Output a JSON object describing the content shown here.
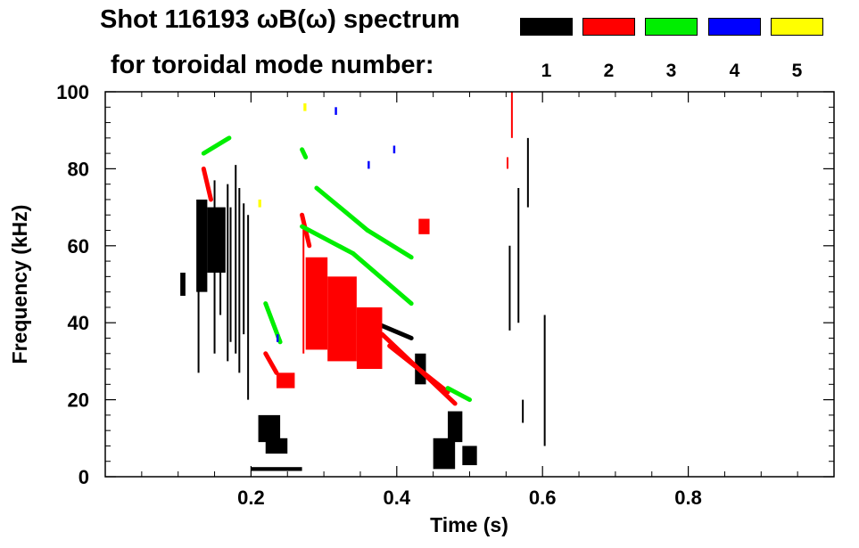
{
  "chart_data": {
    "type": "heatmap",
    "title_line1": "Shot 116193 ωB(ω) spectrum",
    "title_line2": "for toroidal mode number:",
    "xlabel": "Time (s)",
    "ylabel": "Frequency (kHz)",
    "xlim": [
      0.0,
      1.0
    ],
    "ylim": [
      0,
      100
    ],
    "x_ticks": [
      0.2,
      0.4,
      0.6,
      0.8
    ],
    "x_tick_labels": [
      "0.2",
      "0.4",
      "0.6",
      "0.8"
    ],
    "y_ticks": [
      0,
      20,
      40,
      60,
      80,
      100
    ],
    "y_tick_labels": [
      "0",
      "20",
      "40",
      "60",
      "80",
      "100"
    ],
    "legend_position": "top-right",
    "modes": [
      {
        "n": "1",
        "color": "#000000"
      },
      {
        "n": "2",
        "color": "#ff0000"
      },
      {
        "n": "3",
        "color": "#00ee00"
      },
      {
        "n": "4",
        "color": "#0000ff"
      },
      {
        "n": "5",
        "color": "#ffff00"
      }
    ],
    "features": [
      {
        "mode": "1",
        "shape": "box",
        "t": [
          0.103,
          0.11
        ],
        "f": [
          47,
          53
        ]
      },
      {
        "mode": "1",
        "shape": "box",
        "t": [
          0.125,
          0.14
        ],
        "f": [
          48,
          72
        ]
      },
      {
        "mode": "1",
        "shape": "box",
        "t": [
          0.14,
          0.165
        ],
        "f": [
          53,
          70
        ]
      },
      {
        "mode": "1",
        "shape": "vline",
        "t": 0.128,
        "f": [
          27,
          57
        ]
      },
      {
        "mode": "1",
        "shape": "vline",
        "t": 0.15,
        "f": [
          32,
          77
        ]
      },
      {
        "mode": "1",
        "shape": "vline",
        "t": 0.158,
        "f": [
          42,
          68
        ]
      },
      {
        "mode": "1",
        "shape": "vline",
        "t": 0.168,
        "f": [
          30,
          76
        ]
      },
      {
        "mode": "1",
        "shape": "vline",
        "t": 0.172,
        "f": [
          35,
          70
        ]
      },
      {
        "mode": "1",
        "shape": "vline",
        "t": 0.179,
        "f": [
          32,
          81
        ]
      },
      {
        "mode": "1",
        "shape": "vline",
        "t": 0.184,
        "f": [
          27,
          75
        ]
      },
      {
        "mode": "1",
        "shape": "vline",
        "t": 0.19,
        "f": [
          37,
          71
        ]
      },
      {
        "mode": "1",
        "shape": "vline",
        "t": 0.196,
        "f": [
          20,
          68
        ]
      },
      {
        "mode": "1",
        "shape": "box",
        "t": [
          0.21,
          0.24
        ],
        "f": [
          9,
          16
        ]
      },
      {
        "mode": "1",
        "shape": "box",
        "t": [
          0.22,
          0.25
        ],
        "f": [
          6,
          10
        ]
      },
      {
        "mode": "1",
        "shape": "box",
        "t": [
          0.2,
          0.27
        ],
        "f": [
          1.5,
          2.5
        ]
      },
      {
        "mode": "1",
        "shape": "box",
        "t": [
          0.47,
          0.49
        ],
        "f": [
          9,
          17
        ]
      },
      {
        "mode": "1",
        "shape": "box",
        "t": [
          0.45,
          0.48
        ],
        "f": [
          2,
          10
        ]
      },
      {
        "mode": "1",
        "shape": "box",
        "t": [
          0.49,
          0.51
        ],
        "f": [
          3,
          8
        ]
      },
      {
        "mode": "1",
        "shape": "box",
        "t": [
          0.425,
          0.44
        ],
        "f": [
          24,
          32
        ]
      },
      {
        "mode": "1",
        "shape": "line",
        "t": [
          0.37,
          0.42
        ],
        "f": [
          40,
          36
        ]
      },
      {
        "mode": "1",
        "shape": "vline",
        "t": 0.555,
        "f": [
          38,
          60
        ]
      },
      {
        "mode": "1",
        "shape": "vline",
        "t": 0.567,
        "f": [
          40,
          75
        ]
      },
      {
        "mode": "1",
        "shape": "vline",
        "t": 0.58,
        "f": [
          70,
          88
        ]
      },
      {
        "mode": "1",
        "shape": "vline",
        "t": 0.573,
        "f": [
          14,
          20
        ]
      },
      {
        "mode": "1",
        "shape": "vline",
        "t": 0.603,
        "f": [
          8,
          42
        ]
      },
      {
        "mode": "2",
        "shape": "box",
        "t": [
          0.275,
          0.305
        ],
        "f": [
          33,
          57
        ]
      },
      {
        "mode": "2",
        "shape": "box",
        "t": [
          0.305,
          0.345
        ],
        "f": [
          30,
          52
        ]
      },
      {
        "mode": "2",
        "shape": "box",
        "t": [
          0.345,
          0.38
        ],
        "f": [
          28,
          44
        ]
      },
      {
        "mode": "2",
        "shape": "vline",
        "t": 0.272,
        "f": [
          32,
          67
        ]
      },
      {
        "mode": "2",
        "shape": "line",
        "t": [
          0.38,
          0.48
        ],
        "f": [
          37,
          19
        ]
      },
      {
        "mode": "2",
        "shape": "line",
        "t": [
          0.39,
          0.47
        ],
        "f": [
          34,
          22
        ]
      },
      {
        "mode": "2",
        "shape": "box",
        "t": [
          0.235,
          0.26
        ],
        "f": [
          23,
          27
        ]
      },
      {
        "mode": "2",
        "shape": "line",
        "t": [
          0.22,
          0.235
        ],
        "f": [
          32,
          27
        ]
      },
      {
        "mode": "2",
        "shape": "line",
        "t": [
          0.135,
          0.145
        ],
        "f": [
          80,
          72
        ]
      },
      {
        "mode": "2",
        "shape": "line",
        "t": [
          0.27,
          0.28
        ],
        "f": [
          68,
          60
        ]
      },
      {
        "mode": "2",
        "shape": "box",
        "t": [
          0.43,
          0.445
        ],
        "f": [
          63,
          67
        ]
      },
      {
        "mode": "2",
        "shape": "vline",
        "t": 0.558,
        "f": [
          88,
          100
        ]
      },
      {
        "mode": "2",
        "shape": "vline",
        "t": 0.552,
        "f": [
          80,
          83
        ]
      },
      {
        "mode": "3",
        "shape": "line",
        "t": [
          0.135,
          0.17
        ],
        "f": [
          84,
          88
        ]
      },
      {
        "mode": "3",
        "shape": "line",
        "t": [
          0.27,
          0.34
        ],
        "f": [
          65,
          58
        ]
      },
      {
        "mode": "3",
        "shape": "line",
        "t": [
          0.34,
          0.42
        ],
        "f": [
          58,
          45
        ]
      },
      {
        "mode": "3",
        "shape": "line",
        "t": [
          0.29,
          0.36
        ],
        "f": [
          75,
          64
        ]
      },
      {
        "mode": "3",
        "shape": "line",
        "t": [
          0.36,
          0.42
        ],
        "f": [
          64,
          57
        ]
      },
      {
        "mode": "3",
        "shape": "line",
        "t": [
          0.22,
          0.24
        ],
        "f": [
          45,
          35
        ]
      },
      {
        "mode": "3",
        "shape": "line",
        "t": [
          0.47,
          0.5
        ],
        "f": [
          23,
          20
        ]
      },
      {
        "mode": "3",
        "shape": "line",
        "t": [
          0.27,
          0.275
        ],
        "f": [
          85,
          83
        ]
      },
      {
        "mode": "4",
        "shape": "box",
        "t": [
          0.315,
          0.318
        ],
        "f": [
          94,
          96
        ]
      },
      {
        "mode": "4",
        "shape": "box",
        "t": [
          0.395,
          0.398
        ],
        "f": [
          84,
          86
        ]
      },
      {
        "mode": "4",
        "shape": "box",
        "t": [
          0.36,
          0.363
        ],
        "f": [
          80,
          82
        ]
      },
      {
        "mode": "4",
        "shape": "box",
        "t": [
          0.235,
          0.238
        ],
        "f": [
          35,
          37
        ]
      },
      {
        "mode": "5",
        "shape": "box",
        "t": [
          0.272,
          0.276
        ],
        "f": [
          95,
          97
        ]
      },
      {
        "mode": "5",
        "shape": "box",
        "t": [
          0.21,
          0.214
        ],
        "f": [
          70,
          72
        ]
      }
    ]
  }
}
